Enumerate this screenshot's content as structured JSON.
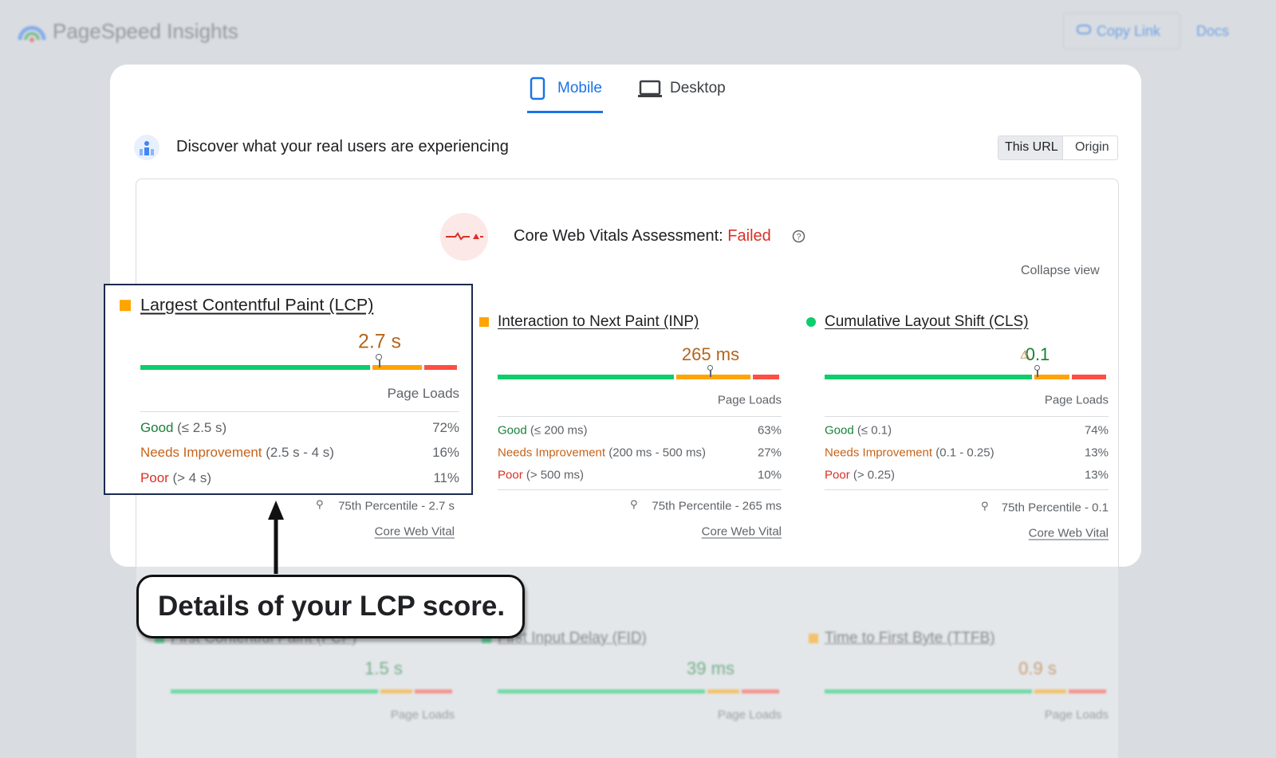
{
  "header": {
    "title": "PageSpeed Insights",
    "copy_link": "Copy Link",
    "docs": "Docs"
  },
  "tabs": [
    "Mobile",
    "Desktop"
  ],
  "section": {
    "heading": "Discover what your real users are experiencing",
    "toggle": [
      "This URL",
      "Origin"
    ]
  },
  "assessment": {
    "label": "Core Web Vitals Assessment:",
    "status": "Failed",
    "collapse": "Collapse view"
  },
  "metrics": [
    {
      "name": "Largest Contentful Paint (LCP)",
      "value": "2.7 s",
      "page_loads": "Page Loads",
      "rows": [
        {
          "label": "Good",
          "range": "(≤ 2.5 s)",
          "pct": "72%"
        },
        {
          "label": "Needs Improvement",
          "range": "(2.5 s - 4 s)",
          "pct": "16%"
        },
        {
          "label": "Poor",
          "range": "(> 4 s)",
          "pct": "11%"
        }
      ],
      "percentile": "75th Percentile - 2.7 s",
      "link": "Core Web Vital"
    },
    {
      "name": "Interaction to Next Paint (INP)",
      "value": "265 ms",
      "page_loads": "Page Loads",
      "rows": [
        {
          "label": "Good",
          "range": "(≤ 200 ms)",
          "pct": "63%"
        },
        {
          "label": "Needs Improvement",
          "range": "(200 ms - 500 ms)",
          "pct": "27%"
        },
        {
          "label": "Poor",
          "range": "(> 500 ms)",
          "pct": "10%"
        }
      ],
      "percentile": "75th Percentile - 265 ms",
      "link": "Core Web Vital"
    },
    {
      "name": "Cumulative Layout Shift (CLS)",
      "value": "0.1",
      "page_loads": "Page Loads",
      "rows": [
        {
          "label": "Good",
          "range": "(≤ 0.1)",
          "pct": "74%"
        },
        {
          "label": "Needs Improvement",
          "range": "(0.1 - 0.25)",
          "pct": "13%"
        },
        {
          "label": "Poor",
          "range": "(> 0.25)",
          "pct": "13%"
        }
      ],
      "percentile": "75th Percentile - 0.1",
      "link": "Core Web Vital"
    }
  ],
  "callout": "Details of your LCP score.",
  "other_metrics": [
    {
      "name": "First Contentful Paint (FCP)",
      "value": "1.5 s",
      "page_loads": "Page Loads"
    },
    {
      "name": "First Input Delay (FID)",
      "value": "39 ms",
      "page_loads": "Page Loads"
    },
    {
      "name": "Time to First Byte (TTFB)",
      "value": "0.9 s",
      "page_loads": "Page Loads"
    }
  ]
}
